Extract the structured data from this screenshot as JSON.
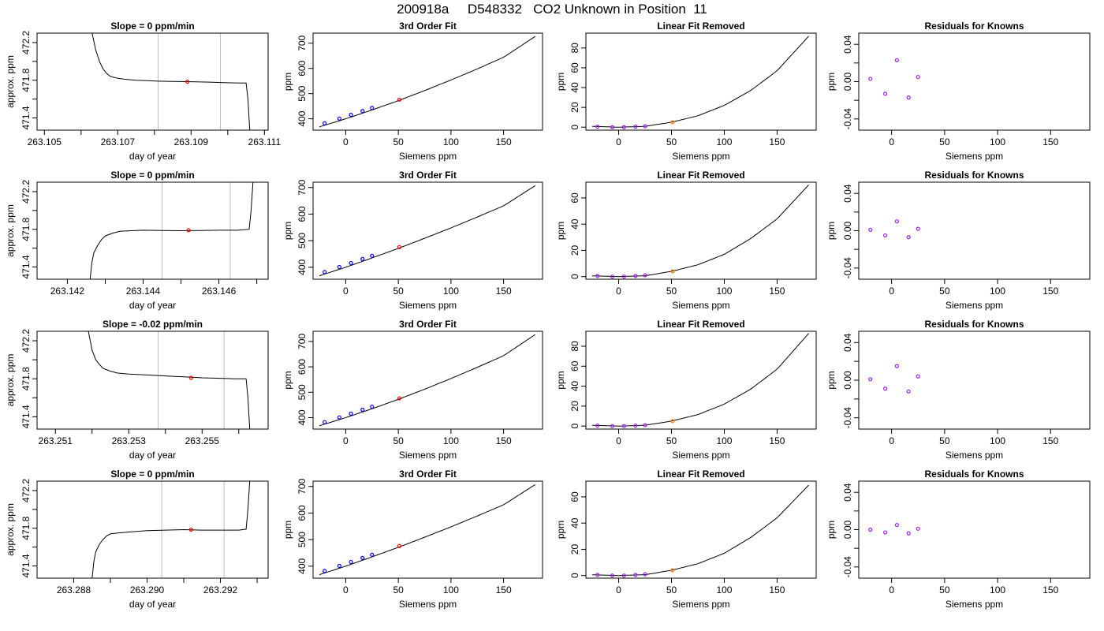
{
  "page": {
    "title": "200918a     D548332   CO2 Unknown in Position  11"
  },
  "colors": {
    "trace": "#000000",
    "marker_red": "#ff0000",
    "marker_blue": "#0000ff",
    "marker_purple": "#a020f0",
    "marker_orange": "#ff7f00",
    "vline": "#bebebe"
  },
  "chart_data": [
    {
      "type": "line",
      "panel": "trace",
      "row": 0,
      "title": "Slope =  0  ppm/min",
      "xlabel": "day of year",
      "ylabel": "approx. ppm",
      "xlim": [
        263.1048,
        263.1111
      ],
      "ylim": [
        471.27,
        472.3
      ],
      "xticks": [
        263.105,
        263.106,
        263.107,
        263.108,
        263.109,
        263.11,
        263.111
      ],
      "xtick_labels": [
        "263.105",
        "",
        "263.107",
        "",
        "263.109",
        "",
        "263.111"
      ],
      "yticks": [
        471.4,
        471.6,
        471.8,
        472.0,
        472.2
      ],
      "ytick_labels": [
        "471.4",
        "",
        "471.8",
        "",
        "472.2"
      ],
      "vlines": [
        263.1081,
        263.1098
      ],
      "marker": {
        "x": 263.1089,
        "y": 471.784
      },
      "x": [
        263.1063,
        263.1064,
        263.1065,
        263.1066,
        263.1067,
        263.1068,
        263.107,
        263.1072,
        263.1075,
        263.1078,
        263.1081,
        263.1085,
        263.109,
        263.1095,
        263.1098,
        263.1102,
        263.1104,
        263.1105,
        263.11055,
        263.1106
      ],
      "y": [
        472.3,
        472.12,
        472.0,
        471.92,
        471.87,
        471.84,
        471.82,
        471.81,
        471.8,
        471.795,
        471.79,
        471.787,
        471.784,
        471.78,
        471.776,
        471.772,
        471.77,
        471.77,
        471.6,
        471.27
      ]
    },
    {
      "type": "line",
      "panel": "fit",
      "row": 0,
      "title": "3rd Order Fit",
      "xlabel": "Siemens ppm",
      "ylabel": "ppm",
      "xlim": [
        -31,
        187
      ],
      "ylim": [
        355,
        740
      ],
      "xticks": [
        0,
        50,
        100,
        150
      ],
      "xtick_labels": [
        "0",
        "50",
        "100",
        "150"
      ],
      "yticks": [
        400,
        500,
        600,
        700
      ],
      "ytick_labels": [
        "400",
        "500",
        "600",
        "700"
      ],
      "curve_x": [
        -25,
        0,
        25,
        50,
        75,
        100,
        125,
        150,
        180
      ],
      "curve_y": [
        368,
        400,
        435,
        472,
        512,
        554,
        598,
        644,
        727
      ],
      "knowns": {
        "x": [
          -20,
          -6,
          5,
          16,
          25
        ],
        "y": [
          382,
          401,
          416,
          431,
          443
        ]
      },
      "unknown": {
        "x": 51,
        "y": 476
      }
    },
    {
      "type": "line",
      "panel": "linres",
      "row": 0,
      "title": "Linear Fit Removed",
      "xlabel": "Siemens ppm",
      "ylabel": "ppm",
      "xlim": [
        -31,
        187
      ],
      "ylim": [
        -3,
        95
      ],
      "xticks": [
        0,
        50,
        100,
        150
      ],
      "xtick_labels": [
        "0",
        "50",
        "100",
        "150"
      ],
      "yticks": [
        0,
        20,
        40,
        60,
        80
      ],
      "ytick_labels": [
        "0",
        "20",
        "40",
        "60",
        "80"
      ],
      "curve_x": [
        -25,
        0,
        25,
        50,
        75,
        100,
        125,
        150,
        180
      ],
      "curve_y": [
        0.8,
        0.0,
        0.8,
        5.0,
        11.5,
        22.0,
        37.0,
        57.0,
        92.0
      ],
      "knowns": {
        "x": [
          -20,
          -6,
          5,
          16,
          25
        ],
        "y": [
          0.5,
          0.0,
          0.0,
          0.5,
          1.0
        ]
      },
      "unknown": {
        "x": 51,
        "y": 5.0
      }
    },
    {
      "type": "scatter",
      "panel": "resid",
      "row": 0,
      "title": "Residuals for Knowns",
      "xlabel": "Siemens ppm",
      "ylabel": "ppm",
      "xlim": [
        -31,
        187
      ],
      "ylim": [
        -0.052,
        0.052
      ],
      "xticks": [
        0,
        50,
        100,
        150
      ],
      "xtick_labels": [
        "0",
        "50",
        "100",
        "150"
      ],
      "yticks": [
        -0.04,
        -0.02,
        0.0,
        0.02,
        0.04
      ],
      "ytick_labels": [
        "-0.04",
        "",
        "0.00",
        "",
        "0.04"
      ],
      "points": {
        "x": [
          -20,
          -6,
          5,
          16,
          25
        ],
        "y": [
          0.003,
          -0.013,
          0.023,
          -0.017,
          0.005
        ]
      }
    },
    {
      "type": "line",
      "panel": "trace",
      "row": 1,
      "title": "Slope =  0  ppm/min",
      "xlabel": "day of year",
      "ylabel": "approx. ppm",
      "xlim": [
        263.1412,
        263.1473
      ],
      "ylim": [
        471.27,
        472.3
      ],
      "xticks": [
        263.142,
        263.143,
        263.144,
        263.145,
        263.146,
        263.147
      ],
      "xtick_labels": [
        "263.142",
        "",
        "263.144",
        "",
        "263.146",
        ""
      ],
      "yticks": [
        471.4,
        471.6,
        471.8,
        472.0,
        472.2
      ],
      "ytick_labels": [
        "471.4",
        "",
        "471.8",
        "",
        "472.2"
      ],
      "vlines": [
        263.1445,
        263.1463
      ],
      "marker": {
        "x": 263.1452,
        "y": 471.79
      },
      "x": [
        263.1426,
        263.14265,
        263.1427,
        263.1428,
        263.1429,
        263.143,
        263.1432,
        263.1434,
        263.1437,
        263.144,
        263.1445,
        263.145,
        263.1455,
        263.146,
        263.1465,
        263.1468,
        263.14685,
        263.1469
      ],
      "y": [
        471.27,
        471.45,
        471.55,
        471.63,
        471.69,
        471.73,
        471.76,
        471.78,
        471.785,
        471.79,
        471.787,
        471.785,
        471.787,
        471.79,
        471.79,
        471.8,
        472.0,
        472.3
      ]
    },
    {
      "type": "line",
      "panel": "fit",
      "row": 1,
      "title": "3rd Order Fit",
      "xlabel": "Siemens ppm",
      "ylabel": "ppm",
      "xlim": [
        -31,
        187
      ],
      "ylim": [
        355,
        720
      ],
      "xticks": [
        0,
        50,
        100,
        150
      ],
      "xtick_labels": [
        "0",
        "50",
        "100",
        "150"
      ],
      "yticks": [
        400,
        500,
        600,
        700
      ],
      "ytick_labels": [
        "400",
        "500",
        "600",
        "700"
      ],
      "curve_x": [
        -25,
        0,
        25,
        50,
        75,
        100,
        125,
        150,
        180
      ],
      "curve_y": [
        368,
        400,
        435,
        471,
        509,
        548,
        589,
        631,
        707
      ],
      "knowns": {
        "x": [
          -20,
          -6,
          5,
          16,
          25
        ],
        "y": [
          382,
          401,
          416,
          431,
          443
        ]
      },
      "unknown": {
        "x": 51,
        "y": 476
      }
    },
    {
      "type": "line",
      "panel": "linres",
      "row": 1,
      "title": "Linear Fit Removed",
      "xlabel": "Siemens ppm",
      "ylabel": "ppm",
      "xlim": [
        -31,
        187
      ],
      "ylim": [
        -2,
        72
      ],
      "xticks": [
        0,
        50,
        100,
        150
      ],
      "xtick_labels": [
        "0",
        "50",
        "100",
        "150"
      ],
      "yticks": [
        0,
        20,
        40,
        60
      ],
      "ytick_labels": [
        "0",
        "20",
        "40",
        "60"
      ],
      "curve_x": [
        -25,
        0,
        25,
        50,
        75,
        100,
        125,
        150,
        180
      ],
      "curve_y": [
        0.6,
        0.0,
        0.6,
        4.0,
        9.0,
        17.0,
        29.0,
        44.0,
        70.0
      ],
      "knowns": {
        "x": [
          -20,
          -6,
          5,
          16,
          25
        ],
        "y": [
          0.5,
          0.0,
          0.0,
          0.5,
          1.0
        ]
      },
      "unknown": {
        "x": 51,
        "y": 4.0
      }
    },
    {
      "type": "scatter",
      "panel": "resid",
      "row": 1,
      "title": "Residuals for Knowns",
      "xlabel": "Siemens ppm",
      "ylabel": "ppm",
      "xlim": [
        -31,
        187
      ],
      "ylim": [
        -0.052,
        0.052
      ],
      "xticks": [
        0,
        50,
        100,
        150
      ],
      "xtick_labels": [
        "0",
        "50",
        "100",
        "150"
      ],
      "yticks": [
        -0.04,
        -0.02,
        0.0,
        0.02,
        0.04
      ],
      "ytick_labels": [
        "-0.04",
        "",
        "0.00",
        "",
        "0.04"
      ],
      "points": {
        "x": [
          -20,
          -6,
          5,
          16,
          25
        ],
        "y": [
          0.001,
          -0.005,
          0.01,
          -0.007,
          0.002
        ]
      }
    },
    {
      "type": "line",
      "panel": "trace",
      "row": 2,
      "title": "Slope =  -0.02  ppm/min",
      "xlabel": "day of year",
      "ylabel": "approx. ppm",
      "xlim": [
        263.2505,
        263.2568
      ],
      "ylim": [
        471.27,
        472.3
      ],
      "xticks": [
        263.251,
        263.252,
        263.253,
        263.254,
        263.255,
        263.256
      ],
      "xtick_labels": [
        "263.251",
        "",
        "263.253",
        "",
        "263.255",
        ""
      ],
      "yticks": [
        471.4,
        471.6,
        471.8,
        472.0,
        472.2
      ],
      "ytick_labels": [
        "471.4",
        "",
        "471.8",
        "",
        "472.2"
      ],
      "vlines": [
        263.2538,
        263.2556
      ],
      "marker": {
        "x": 263.2547,
        "y": 471.81
      },
      "x": [
        263.2519,
        263.252,
        263.2521,
        263.2522,
        263.2523,
        263.2525,
        263.2527,
        263.253,
        263.2535,
        263.254,
        263.2545,
        263.255,
        263.2555,
        263.2559,
        263.2562,
        263.25625,
        263.2563
      ],
      "y": [
        472.3,
        472.1,
        472.0,
        471.95,
        471.91,
        471.88,
        471.86,
        471.85,
        471.84,
        471.83,
        471.82,
        471.81,
        471.805,
        471.8,
        471.8,
        471.6,
        471.27
      ]
    },
    {
      "type": "line",
      "panel": "fit",
      "row": 2,
      "title": "3rd Order Fit",
      "xlabel": "Siemens ppm",
      "ylabel": "ppm",
      "xlim": [
        -31,
        187
      ],
      "ylim": [
        355,
        740
      ],
      "xticks": [
        0,
        50,
        100,
        150
      ],
      "xtick_labels": [
        "0",
        "50",
        "100",
        "150"
      ],
      "yticks": [
        400,
        500,
        600,
        700
      ],
      "ytick_labels": [
        "400",
        "500",
        "600",
        "700"
      ],
      "curve_x": [
        -25,
        0,
        25,
        50,
        75,
        100,
        125,
        150,
        180
      ],
      "curve_y": [
        368,
        400,
        435,
        472,
        512,
        554,
        598,
        644,
        727
      ],
      "knowns": {
        "x": [
          -20,
          -6,
          5,
          16,
          25
        ],
        "y": [
          382,
          401,
          416,
          431,
          443
        ]
      },
      "unknown": {
        "x": 51,
        "y": 476
      }
    },
    {
      "type": "line",
      "panel": "linres",
      "row": 2,
      "title": "Linear Fit Removed",
      "xlabel": "Siemens ppm",
      "ylabel": "ppm",
      "xlim": [
        -31,
        187
      ],
      "ylim": [
        -3,
        95
      ],
      "xticks": [
        0,
        50,
        100,
        150
      ],
      "xtick_labels": [
        "0",
        "50",
        "100",
        "150"
      ],
      "yticks": [
        0,
        20,
        40,
        60,
        80
      ],
      "ytick_labels": [
        "0",
        "20",
        "40",
        "60",
        "80"
      ],
      "curve_x": [
        -25,
        0,
        25,
        50,
        75,
        100,
        125,
        150,
        180
      ],
      "curve_y": [
        0.8,
        0.0,
        0.8,
        5.0,
        11.5,
        22.0,
        37.0,
        57.0,
        93.0
      ],
      "knowns": {
        "x": [
          -20,
          -6,
          5,
          16,
          25
        ],
        "y": [
          0.5,
          0.0,
          0.0,
          0.5,
          1.0
        ]
      },
      "unknown": {
        "x": 51,
        "y": 5.0
      }
    },
    {
      "type": "scatter",
      "panel": "resid",
      "row": 2,
      "title": "Residuals for Knowns",
      "xlabel": "Siemens ppm",
      "ylabel": "ppm",
      "xlim": [
        -31,
        187
      ],
      "ylim": [
        -0.052,
        0.052
      ],
      "xticks": [
        0,
        50,
        100,
        150
      ],
      "xtick_labels": [
        "0",
        "50",
        "100",
        "150"
      ],
      "yticks": [
        -0.04,
        -0.02,
        0.0,
        0.02,
        0.04
      ],
      "ytick_labels": [
        "-0.04",
        "",
        "0.00",
        "",
        "0.04"
      ],
      "points": {
        "x": [
          -20,
          -6,
          5,
          16,
          25
        ],
        "y": [
          0.001,
          -0.009,
          0.015,
          -0.012,
          0.004
        ]
      }
    },
    {
      "type": "line",
      "panel": "trace",
      "row": 3,
      "title": "Slope =  0  ppm/min",
      "xlabel": "day of year",
      "ylabel": "approx. ppm",
      "xlim": [
        263.287,
        263.2933
      ],
      "ylim": [
        471.27,
        472.3
      ],
      "xticks": [
        263.288,
        263.289,
        263.29,
        263.291,
        263.292,
        263.293
      ],
      "xtick_labels": [
        "263.288",
        "",
        "263.290",
        "",
        "263.292",
        ""
      ],
      "yticks": [
        471.4,
        471.6,
        471.8,
        472.0,
        472.2
      ],
      "ytick_labels": [
        "471.4",
        "",
        "471.8",
        "",
        "472.2"
      ],
      "vlines": [
        263.2904,
        263.2921
      ],
      "marker": {
        "x": 263.2912,
        "y": 471.785
      },
      "x": [
        263.2885,
        263.28855,
        263.2886,
        263.2887,
        263.2888,
        263.2889,
        263.289,
        263.2892,
        263.2895,
        263.29,
        263.2905,
        263.291,
        263.2915,
        263.292,
        263.2925,
        263.2927,
        263.29275,
        263.2928
      ],
      "y": [
        471.27,
        471.45,
        471.55,
        471.63,
        471.68,
        471.72,
        471.74,
        471.75,
        471.76,
        471.775,
        471.78,
        471.785,
        471.78,
        471.78,
        471.78,
        471.79,
        472.0,
        472.3
      ]
    },
    {
      "type": "line",
      "panel": "fit",
      "row": 3,
      "title": "3rd Order Fit",
      "xlabel": "Siemens ppm",
      "ylabel": "ppm",
      "xlim": [
        -31,
        187
      ],
      "ylim": [
        355,
        720
      ],
      "xticks": [
        0,
        50,
        100,
        150
      ],
      "xtick_labels": [
        "0",
        "50",
        "100",
        "150"
      ],
      "yticks": [
        400,
        500,
        600,
        700
      ],
      "ytick_labels": [
        "400",
        "500",
        "600",
        "700"
      ],
      "curve_x": [
        -25,
        0,
        25,
        50,
        75,
        100,
        125,
        150,
        180
      ],
      "curve_y": [
        368,
        400,
        435,
        471,
        509,
        548,
        589,
        631,
        707
      ],
      "knowns": {
        "x": [
          -20,
          -6,
          5,
          16,
          25
        ],
        "y": [
          382,
          401,
          416,
          431,
          443
        ]
      },
      "unknown": {
        "x": 51,
        "y": 476
      }
    },
    {
      "type": "line",
      "panel": "linres",
      "row": 3,
      "title": "Linear Fit Removed",
      "xlabel": "Siemens ppm",
      "ylabel": "ppm",
      "xlim": [
        -31,
        187
      ],
      "ylim": [
        -2,
        72
      ],
      "xticks": [
        0,
        50,
        100,
        150
      ],
      "xtick_labels": [
        "0",
        "50",
        "100",
        "150"
      ],
      "yticks": [
        0,
        20,
        40,
        60
      ],
      "ytick_labels": [
        "0",
        "20",
        "40",
        "60"
      ],
      "curve_x": [
        -25,
        0,
        25,
        50,
        75,
        100,
        125,
        150,
        180
      ],
      "curve_y": [
        0.6,
        0.0,
        0.6,
        4.0,
        9.0,
        17.0,
        29.0,
        44.0,
        69.0
      ],
      "knowns": {
        "x": [
          -20,
          -6,
          5,
          16,
          25
        ],
        "y": [
          0.5,
          0.0,
          0.0,
          0.5,
          1.0
        ]
      },
      "unknown": {
        "x": 51,
        "y": 4.0
      }
    },
    {
      "type": "scatter",
      "panel": "resid",
      "row": 3,
      "title": "Residuals for Knowns",
      "xlabel": "Siemens ppm",
      "ylabel": "ppm",
      "xlim": [
        -31,
        187
      ],
      "ylim": [
        -0.052,
        0.052
      ],
      "xticks": [
        0,
        50,
        100,
        150
      ],
      "xtick_labels": [
        "0",
        "50",
        "100",
        "150"
      ],
      "yticks": [
        -0.04,
        -0.02,
        0.0,
        0.02,
        0.04
      ],
      "ytick_labels": [
        "-0.04",
        "",
        "0.00",
        "",
        "0.04"
      ],
      "points": {
        "x": [
          -20,
          -6,
          5,
          16,
          25
        ],
        "y": [
          0.0,
          -0.003,
          0.005,
          -0.004,
          0.001
        ]
      }
    }
  ]
}
